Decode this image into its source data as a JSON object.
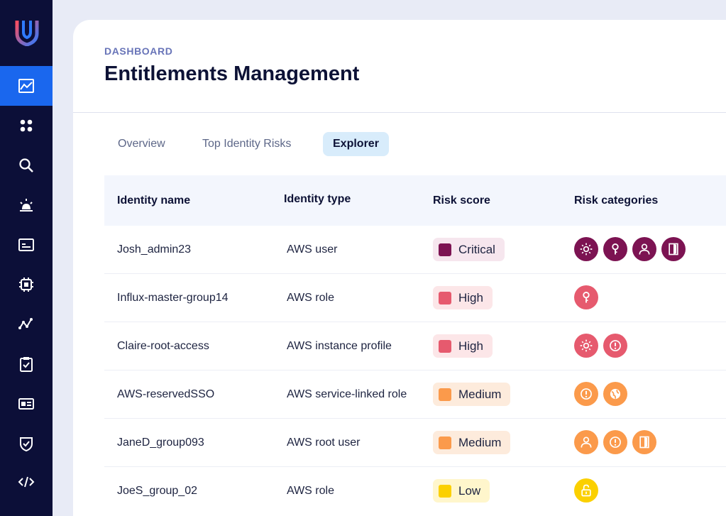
{
  "breadcrumb": "DASHBOARD",
  "title": "Entitlements Management",
  "tabs": [
    {
      "label": "Overview",
      "active": false
    },
    {
      "label": "Top Identity Risks",
      "active": false
    },
    {
      "label": "Explorer",
      "active": true
    }
  ],
  "columns": [
    "Identity name",
    "Identity type",
    "Risk score",
    "Risk categories"
  ],
  "rows": [
    {
      "name": "Josh_admin23",
      "type": "AWS user",
      "risk": "Critical",
      "categories": [
        "sun-icon",
        "key-icon",
        "user-icon",
        "door-icon"
      ]
    },
    {
      "name": "Influx-master-group14",
      "type": "AWS role",
      "risk": "High",
      "categories": [
        "key-icon"
      ]
    },
    {
      "name": "Claire-root-access",
      "type": "AWS instance profile",
      "risk": "High",
      "categories": [
        "sun-icon",
        "alert-icon"
      ]
    },
    {
      "name": "AWS-reservedSSO",
      "type": "AWS service-linked role",
      "risk": "Medium",
      "categories": [
        "alert-icon",
        "globe-icon"
      ]
    },
    {
      "name": "JaneD_group093",
      "type": "AWS root user",
      "risk": "Medium",
      "categories": [
        "user-icon",
        "alert-icon",
        "door-icon"
      ]
    },
    {
      "name": "JoeS_group_02",
      "type": "AWS role",
      "risk": "Low",
      "categories": [
        "unlock-icon"
      ]
    }
  ],
  "risk_colors": {
    "Critical": {
      "square": "#7c1352",
      "bg": "#f6e6ee",
      "icon": "#7c1352"
    },
    "High": {
      "square": "#e65a6e",
      "bg": "#fce6e8",
      "icon": "#e65a6e"
    },
    "Medium": {
      "square": "#fb9a4b",
      "bg": "#fdebdc",
      "icon": "#fb9a4b"
    },
    "Low": {
      "square": "#fbd000",
      "bg": "#fff6cc",
      "icon": "#fbd000"
    }
  },
  "sidebar_icons": [
    "dashboard-icon",
    "apps-icon",
    "search-icon",
    "alarm-icon",
    "card-icon",
    "chip-icon",
    "graph-icon",
    "clipboard-check-icon",
    "id-card-icon",
    "shield-icon",
    "code-icon"
  ],
  "accent": "#1a67ee",
  "sidebar_bg": "#0c0f38"
}
